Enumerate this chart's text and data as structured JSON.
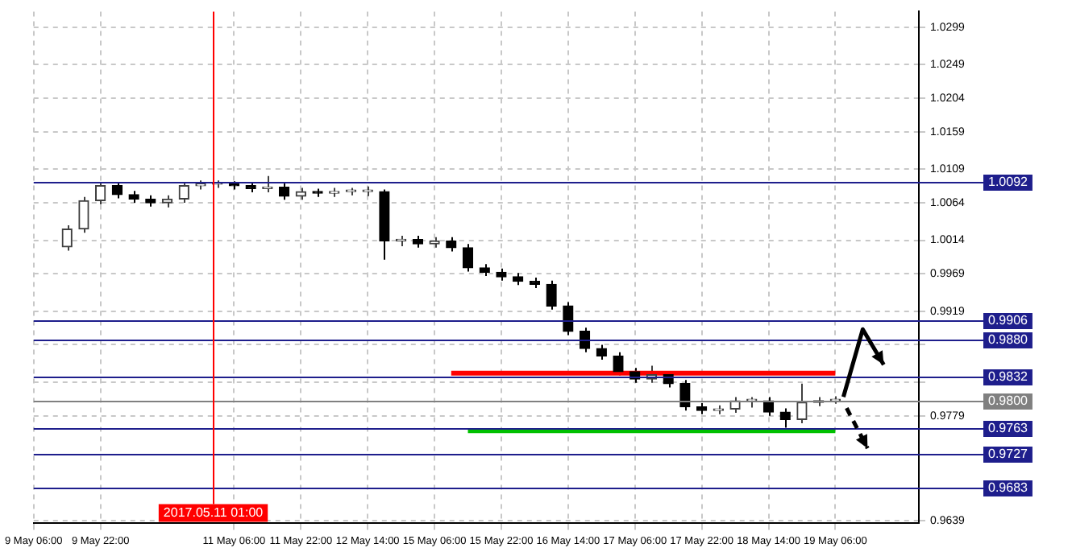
{
  "chart_data": {
    "type": "candlestick",
    "categories": [
      "9 May 06:00",
      null,
      null,
      null,
      "9 May 22:00",
      null,
      null,
      null,
      null,
      null,
      null,
      null,
      "11 May 06:00",
      null,
      null,
      null,
      "11 May 22:00",
      null,
      null,
      null,
      "12 May 14:00",
      null,
      null,
      null,
      "15 May 06:00",
      null,
      null,
      null,
      "15 May 22:00",
      null,
      null,
      null,
      "16 May 14:00",
      null,
      null,
      null,
      "17 May 06:00",
      null,
      null,
      null,
      "17 May 22:00",
      null,
      null,
      null,
      "18 May 14:00",
      null,
      null,
      null,
      "19 May 06:00",
      null,
      null,
      null,
      null,
      null
    ],
    "ohlc": [
      null,
      null,
      [
        1.0005,
        1.0034,
        1.0,
        1.0029
      ],
      [
        1.0029,
        1.0072,
        1.0024,
        1.0067
      ],
      [
        1.0067,
        1.0092,
        1.0062,
        1.0087
      ],
      [
        1.0087,
        1.0092,
        1.007,
        1.0075
      ],
      [
        1.0075,
        1.008,
        1.0064,
        1.0069
      ],
      [
        1.0069,
        1.0074,
        1.0059,
        1.0064
      ],
      [
        1.0064,
        1.0074,
        1.0058,
        1.0069
      ],
      [
        1.0069,
        1.0092,
        1.0064,
        1.0087
      ],
      [
        1.0087,
        1.0094,
        1.0082,
        1.0089
      ],
      [
        1.0089,
        1.0094,
        1.0084,
        1.0089
      ],
      [
        1.0089,
        1.0093,
        1.0082,
        1.0087
      ],
      [
        1.0087,
        1.0092,
        1.0078,
        1.0083
      ],
      [
        1.0083,
        1.01,
        1.0078,
        1.0085
      ],
      [
        1.0085,
        1.009,
        1.0068,
        1.0073
      ],
      [
        1.0073,
        1.0084,
        1.0068,
        1.0079
      ],
      [
        1.0079,
        1.0083,
        1.0072,
        1.0077
      ],
      [
        1.0077,
        1.0084,
        1.0072,
        1.0079
      ],
      [
        1.0079,
        1.0084,
        1.0074,
        1.0079
      ],
      [
        1.0079,
        1.0086,
        1.0073,
        1.0079
      ],
      [
        1.0079,
        1.0082,
        0.9988,
        1.0013
      ],
      [
        1.0013,
        1.002,
        1.0006,
        1.0015
      ],
      [
        1.0015,
        1.002,
        1.0004,
        1.0009
      ],
      [
        1.0009,
        1.0018,
        1.0004,
        1.0013
      ],
      [
        1.0013,
        1.0018,
        0.9999,
        1.0004
      ],
      [
        1.0004,
        1.0009,
        0.9972,
        0.9977
      ],
      [
        0.9977,
        0.9982,
        0.9966,
        0.9971
      ],
      [
        0.9971,
        0.9976,
        0.996,
        0.9965
      ],
      [
        0.9965,
        0.997,
        0.9954,
        0.9959
      ],
      [
        0.9959,
        0.9964,
        0.995,
        0.9955
      ],
      [
        0.9955,
        0.996,
        0.9921,
        0.9926
      ],
      [
        0.9926,
        0.9931,
        0.9887,
        0.9892
      ],
      [
        0.9892,
        0.9897,
        0.9864,
        0.9869
      ],
      [
        0.9869,
        0.9874,
        0.9854,
        0.9859
      ],
      [
        0.9859,
        0.9864,
        0.9833,
        0.9838
      ],
      [
        0.9838,
        0.9843,
        0.9823,
        0.9828
      ],
      [
        0.9828,
        0.9846,
        0.9823,
        0.9834
      ],
      [
        0.9834,
        0.9839,
        0.9817,
        0.9822
      ],
      [
        0.9822,
        0.9827,
        0.9786,
        0.9791
      ],
      [
        0.9791,
        0.9796,
        0.9781,
        0.9786
      ],
      [
        0.9786,
        0.9793,
        0.9781,
        0.9788
      ],
      [
        0.9788,
        0.9804,
        0.9783,
        0.9799
      ],
      [
        0.9799,
        0.9804,
        0.979,
        0.9799
      ],
      [
        0.9799,
        0.9804,
        0.9779,
        0.9784
      ],
      [
        0.9784,
        0.9789,
        0.9763,
        0.9774
      ],
      [
        0.9774,
        0.9822,
        0.9769,
        0.9797
      ],
      [
        0.9797,
        0.9804,
        0.9792,
        0.9799
      ],
      [
        0.9799,
        0.9805,
        0.9795,
        0.98
      ],
      null,
      null,
      null,
      null,
      null
    ],
    "series": [
      {
        "type": "line",
        "color": "#ff0000",
        "values": [
          null,
          null,
          null,
          null,
          null,
          null,
          null,
          null,
          null,
          null,
          null,
          null,
          null,
          null,
          null,
          null,
          null,
          null,
          null,
          null,
          null,
          null,
          null,
          null,
          null,
          0.9836,
          0.9836,
          0.9836,
          0.9836,
          0.9836,
          0.9836,
          0.9836,
          0.9836,
          0.9836,
          0.9836,
          0.9836,
          0.9836,
          0.9836,
          0.9836,
          0.9836,
          0.9836,
          0.9836,
          0.9836,
          0.9836,
          0.9836,
          0.9836,
          0.9836,
          0.9836,
          0.9836,
          null,
          null,
          null,
          null,
          null
        ]
      },
      {
        "type": "line",
        "color": "#00c000",
        "values": [
          null,
          null,
          null,
          null,
          null,
          null,
          null,
          null,
          null,
          null,
          null,
          null,
          null,
          null,
          null,
          null,
          null,
          null,
          null,
          null,
          null,
          null,
          null,
          null,
          null,
          null,
          0.9759,
          0.9759,
          0.9759,
          0.9759,
          0.9759,
          0.9759,
          0.9759,
          0.9759,
          0.9759,
          0.9759,
          0.9759,
          0.9759,
          0.9759,
          0.9759,
          0.9759,
          0.9759,
          0.9759,
          0.9759,
          0.9759,
          0.9759,
          0.9759,
          0.9759,
          0.9759,
          null,
          null,
          null,
          null,
          null
        ]
      }
    ],
    "ylim": [
      0.9635,
      1.032
    ],
    "yticks": [
      1.0299,
      1.0249,
      1.0204,
      1.0159,
      1.0109,
      1.0064,
      1.0014,
      0.9969,
      0.9919,
      {
        "value": 0.9874,
        "label": null
      },
      {
        "value": 0.9824,
        "label": null
      },
      0.9779,
      0.9639
    ],
    "grid": true,
    "annotations": [
      "2017.05.11 01:00"
    ],
    "ref_lines": [
      {
        "axis": "y",
        "value": 1.0092,
        "label": "1.0092",
        "color": "#1e1e8c"
      },
      {
        "axis": "y",
        "value": 0.9906,
        "label": "0.9906",
        "color": "#1e1e8c"
      },
      {
        "axis": "y",
        "value": 0.988,
        "label": "0.9880",
        "color": "#1e1e8c"
      },
      {
        "axis": "y",
        "value": 0.9832,
        "label": "0.9832",
        "color": "#1e1e8c"
      },
      {
        "axis": "y",
        "value": 0.98,
        "label": "0.9800",
        "color": "#808080"
      },
      {
        "axis": "y",
        "value": 0.9763,
        "label": "0.9763",
        "color": "#1e1e8c"
      },
      {
        "axis": "y",
        "value": 0.9727,
        "label": "0.9727",
        "color": "#1e1e8c"
      },
      {
        "axis": "y",
        "value": 0.9683,
        "label": "0.9683",
        "color": "#1e1e8c"
      }
    ]
  }
}
